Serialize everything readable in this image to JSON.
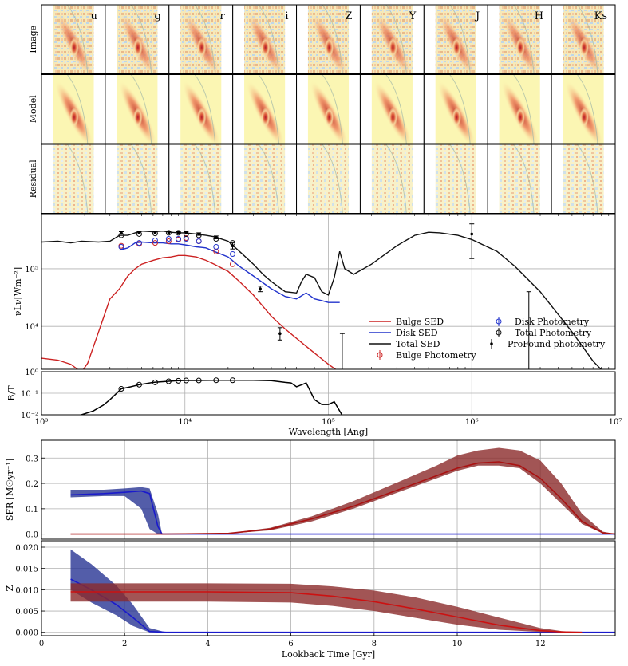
{
  "mosaic": {
    "bands": [
      "u",
      "g",
      "r",
      "i",
      "Z",
      "Y",
      "J",
      "H",
      "Ks"
    ],
    "row_labels": [
      "Image",
      "Model",
      "Residual"
    ]
  },
  "chart_data": [
    {
      "type": "line",
      "panel": "sed",
      "xlabel": "Wavelength [Ang]",
      "ylabel": "νLν[Wm⁻²]",
      "xscale": "log",
      "yscale": "log",
      "xlim": [
        1000,
        10000000
      ],
      "ylim": [
        1800,
        900000
      ],
      "x_ticks": [
        {
          "v": 1000,
          "label": "10³"
        },
        {
          "v": 10000,
          "label": "10⁴"
        },
        {
          "v": 100000,
          "label": "10⁵"
        },
        {
          "v": 1000000,
          "label": "10⁶"
        },
        {
          "v": 10000000,
          "label": "10⁷"
        }
      ],
      "y_ticks": [
        {
          "v": 10000,
          "label": "10⁴"
        },
        {
          "v": 100000,
          "label": "10⁵"
        }
      ],
      "grid": true,
      "legend": {
        "placement": "bottom-right",
        "entries": [
          {
            "label": "Bulge SED",
            "kind": "line",
            "color": "#cc2222"
          },
          {
            "label": "Disk SED",
            "kind": "line",
            "color": "#2233cc"
          },
          {
            "label": "Total SED",
            "kind": "line",
            "color": "#111111"
          },
          {
            "label": "Bulge Photometry",
            "kind": "circle",
            "color": "#cc2222"
          },
          {
            "label": "Disk Photometry",
            "kind": "circle",
            "color": "#2233cc"
          },
          {
            "label": "Total Photometry",
            "kind": "circle",
            "color": "#111111"
          },
          {
            "label": "ProFound photometry",
            "kind": "errorbar",
            "color": "#000000"
          }
        ]
      },
      "series": [
        {
          "name": "Bulge SED",
          "color": "#cc2222",
          "x": [
            1000,
            1300,
            1600,
            1900,
            2100,
            2500,
            3000,
            3500,
            4000,
            4500,
            5000,
            6000,
            7000,
            8000,
            9000,
            10000,
            12000,
            14000,
            16000,
            20000,
            24000,
            30000,
            40000,
            50000,
            70000,
            100000,
            120000
          ],
          "y": [
            2800,
            2600,
            2200,
            1600,
            2300,
            8000,
            30000,
            45000,
            75000,
            100000,
            120000,
            140000,
            155000,
            160000,
            170000,
            170000,
            160000,
            140000,
            120000,
            90000,
            60000,
            35000,
            15000,
            9000,
            4500,
            2200,
            1600
          ]
        },
        {
          "name": "Disk SED",
          "color": "#2233cc",
          "x": [
            3500,
            4000,
            4500,
            5000,
            6000,
            7000,
            8000,
            9000,
            10000,
            12000,
            14000,
            16000,
            20000,
            24000,
            30000,
            40000,
            50000,
            60000,
            70000,
            80000,
            90000,
            100000,
            120000
          ],
          "y": [
            210000,
            230000,
            280000,
            290000,
            280000,
            280000,
            270000,
            270000,
            260000,
            240000,
            230000,
            200000,
            160000,
            110000,
            75000,
            45000,
            33000,
            30000,
            38000,
            30000,
            28000,
            26000,
            26000
          ]
        },
        {
          "name": "Total SED",
          "color": "#111111",
          "x": [
            1000,
            1300,
            1600,
            1900,
            2500,
            3000,
            3500,
            4000,
            4500,
            5000,
            6000,
            7000,
            8000,
            9000,
            10000,
            12000,
            14000,
            16000,
            20000,
            24000,
            30000,
            35000,
            40000,
            50000,
            60000,
            65000,
            70000,
            80000,
            90000,
            100000,
            110000,
            120000,
            130000,
            150000,
            200000,
            300000,
            400000,
            500000,
            600000,
            800000,
            1000000,
            1500000,
            2000000,
            3000000,
            5000000,
            7000000,
            10000000
          ],
          "y": [
            290000,
            300000,
            280000,
            300000,
            290000,
            300000,
            380000,
            380000,
            420000,
            450000,
            440000,
            450000,
            430000,
            420000,
            420000,
            400000,
            380000,
            360000,
            300000,
            200000,
            120000,
            80000,
            60000,
            40000,
            38000,
            60000,
            80000,
            70000,
            40000,
            35000,
            70000,
            200000,
            100000,
            80000,
            120000,
            250000,
            380000,
            430000,
            420000,
            380000,
            320000,
            200000,
            110000,
            40000,
            8000,
            2500,
            1000
          ]
        }
      ],
      "markers": {
        "bulge_photometry": {
          "color": "#cc2222",
          "x": [
            3600,
            4800,
            6200,
            7700,
            9000,
            10200,
            12500,
            16500,
            21500
          ],
          "y": [
            250000,
            270000,
            280000,
            300000,
            320000,
            340000,
            300000,
            200000,
            120000
          ]
        },
        "disk_photometry": {
          "color": "#2233cc",
          "x": [
            3600,
            4800,
            6200,
            7700,
            9000,
            10200,
            12500,
            16500,
            21500
          ],
          "y": [
            240000,
            280000,
            310000,
            330000,
            330000,
            330000,
            300000,
            240000,
            180000
          ]
        },
        "total_photometry": {
          "color": "#111111",
          "x": [
            3600,
            4800,
            6200,
            7700,
            9000,
            10200,
            12500,
            16500,
            21500
          ],
          "y": [
            380000,
            400000,
            410000,
            420000,
            420000,
            400000,
            380000,
            330000,
            280000
          ]
        },
        "profound_photometry": {
          "color": "#000000",
          "x": [
            3600,
            4800,
            6200,
            7700,
            9000,
            10200,
            12500,
            16500,
            21500,
            33500,
            46000,
            125000,
            1000000,
            2500000
          ],
          "y": [
            420000,
            420000,
            420000,
            420000,
            420000,
            420000,
            400000,
            350000,
            250000,
            45000,
            7500,
            1000,
            400000,
            1000
          ],
          "err_hi": [
            440000,
            440000,
            440000,
            440000,
            440000,
            440000,
            420000,
            370000,
            280000,
            50000,
            9500,
            7500,
            600000,
            40000
          ],
          "err_lo": [
            400000,
            400000,
            400000,
            400000,
            400000,
            400000,
            380000,
            330000,
            220000,
            40000,
            5800,
            600,
            150000,
            600
          ]
        }
      }
    },
    {
      "type": "line",
      "panel": "bt",
      "ylabel": "B/T",
      "xscale": "log",
      "yscale": "log",
      "xlim": [
        1000,
        10000000
      ],
      "ylim": [
        0.01,
        1
      ],
      "y_ticks": [
        {
          "v": 0.01,
          "label": "10⁻²"
        },
        {
          "v": 0.1,
          "label": "10⁻¹"
        },
        {
          "v": 1,
          "label": "10⁰"
        }
      ],
      "grid": true,
      "series": [
        {
          "name": "",
          "color": "#000000",
          "x": [
            1900,
            2300,
            2700,
            3000,
            3600,
            4200,
            4800,
            6000,
            7700,
            9000,
            10200,
            12500,
            16500,
            21500,
            30000,
            40000,
            50000,
            55000,
            60000,
            70000,
            80000,
            90000,
            100000,
            110000,
            130000
          ],
          "y": [
            0.01,
            0.015,
            0.028,
            0.05,
            0.16,
            0.2,
            0.25,
            0.32,
            0.36,
            0.38,
            0.39,
            0.39,
            0.4,
            0.4,
            0.4,
            0.38,
            0.32,
            0.3,
            0.2,
            0.3,
            0.05,
            0.03,
            0.03,
            0.04,
            0.006
          ]
        }
      ],
      "markers": {
        "x": [
          3600,
          4800,
          6200,
          7700,
          9000,
          10200,
          12500,
          16500,
          21500
        ],
        "y": [
          0.16,
          0.25,
          0.32,
          0.36,
          0.38,
          0.39,
          0.39,
          0.4,
          0.4
        ]
      }
    },
    {
      "type": "area",
      "panel": "sfr",
      "ylabel": "SFR [M☉yr⁻¹]",
      "xlim": [
        0,
        13.8
      ],
      "ylim": [
        -0.02,
        0.37
      ],
      "y_ticks": [
        0.0,
        0.1,
        0.2,
        0.3
      ],
      "y_tick_labels": [
        "0.0",
        "0.1",
        "0.2",
        "0.3"
      ],
      "grid": true,
      "series": [
        {
          "name": "",
          "color": "#1a1acc",
          "band_color": "#283593",
          "x": [
            0.7,
            1.5,
            2.0,
            2.4,
            2.6,
            2.8,
            2.9,
            3.5,
            6,
            10,
            13.8
          ],
          "y": [
            0.155,
            0.16,
            0.165,
            0.17,
            0.16,
            0.03,
            0.0,
            0.0,
            0.0,
            0.0,
            0.0
          ],
          "y_lo": [
            0.145,
            0.15,
            0.15,
            0.1,
            0.02,
            0.0,
            0.0,
            0.0,
            0.0,
            0.0,
            0.0
          ],
          "y_hi": [
            0.175,
            0.175,
            0.18,
            0.185,
            0.18,
            0.08,
            0.0,
            0.0,
            0.0,
            0.0,
            0.0
          ]
        },
        {
          "name": "",
          "color": "#aa1111",
          "band_color": "#8b2a2a",
          "x": [
            0.7,
            3,
            4.5,
            5.5,
            6.5,
            7.5,
            8.5,
            9.5,
            10,
            10.5,
            11,
            11.5,
            12,
            12.5,
            13,
            13.5,
            13.8
          ],
          "y": [
            0.0,
            0.0,
            0.003,
            0.02,
            0.06,
            0.11,
            0.17,
            0.23,
            0.26,
            0.28,
            0.285,
            0.27,
            0.22,
            0.14,
            0.05,
            0.005,
            0.0
          ],
          "y_lo": [
            0.0,
            0.0,
            0.002,
            0.015,
            0.05,
            0.1,
            0.16,
            0.22,
            0.25,
            0.27,
            0.27,
            0.26,
            0.2,
            0.12,
            0.04,
            0.003,
            0.0
          ],
          "y_hi": [
            0.0,
            0.0,
            0.004,
            0.025,
            0.07,
            0.13,
            0.2,
            0.27,
            0.31,
            0.33,
            0.34,
            0.33,
            0.29,
            0.2,
            0.08,
            0.01,
            0.0
          ]
        }
      ]
    },
    {
      "type": "area",
      "panel": "metallicity",
      "xlabel": "Lookback Time [Gyr]",
      "ylabel": "Z",
      "xlim": [
        0,
        13.8
      ],
      "ylim": [
        -0.0008,
        0.0215
      ],
      "x_ticks": [
        0,
        2,
        4,
        6,
        8,
        10,
        12
      ],
      "y_ticks": [
        0.0,
        0.005,
        0.01,
        0.015,
        0.02
      ],
      "y_tick_labels": [
        "0.000",
        "0.005",
        "0.010",
        "0.015",
        "0.020"
      ],
      "grid": true,
      "series": [
        {
          "name": "",
          "color": "#1a1acc",
          "band_color": "#283593",
          "x": [
            0.7,
            1.2,
            1.8,
            2.2,
            2.6,
            3,
            6,
            13.8
          ],
          "y": [
            0.0125,
            0.01,
            0.0065,
            0.0035,
            0.0002,
            0.0,
            0.0,
            0.0
          ],
          "y_lo": [
            0.01,
            0.007,
            0.004,
            0.0015,
            0.0,
            0.0,
            0.0,
            0.0
          ],
          "y_hi": [
            0.0195,
            0.016,
            0.011,
            0.0065,
            0.001,
            0.0,
            0.0,
            0.0
          ]
        },
        {
          "name": "",
          "color": "#cc1111",
          "band_color": "#8b2a2a",
          "x": [
            0.7,
            2,
            4,
            6,
            7,
            8,
            9,
            10,
            11,
            12,
            12.5,
            13
          ],
          "y": [
            0.0095,
            0.0095,
            0.0095,
            0.0093,
            0.0085,
            0.0072,
            0.0055,
            0.0036,
            0.0017,
            0.0004,
            0.0001,
            0.0
          ],
          "y_lo": [
            0.0072,
            0.0072,
            0.0072,
            0.007,
            0.0062,
            0.005,
            0.0034,
            0.0018,
            0.0006,
            0.0001,
            0.0,
            0.0
          ],
          "y_hi": [
            0.0115,
            0.0115,
            0.0115,
            0.0114,
            0.0108,
            0.0098,
            0.0082,
            0.006,
            0.0035,
            0.001,
            0.0003,
            0.0
          ]
        }
      ]
    }
  ]
}
